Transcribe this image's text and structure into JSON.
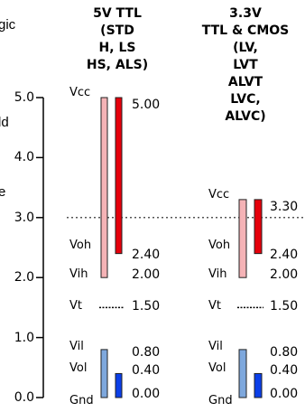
{
  "side_text": {
    "top": "gic",
    "middle": "ld",
    "lower": "e"
  },
  "columns": [
    {
      "id": "ttl5",
      "heading": [
        "5V TTL",
        "(STD",
        "H, LS",
        "HS, ALS)"
      ],
      "vcc": {
        "label": "Vcc",
        "value": "5.00",
        "level": 5.0
      },
      "voh": {
        "label": "Voh",
        "value": "2.40",
        "level": 2.4
      },
      "vih": {
        "label": "Vih",
        "value": "2.00",
        "level": 2.0
      },
      "vt": {
        "label": "Vt",
        "value": "1.50",
        "level": 1.5
      },
      "vil": {
        "label": "Vil",
        "value": "0.80",
        "level": 0.8
      },
      "vol": {
        "label": "Vol",
        "value": "0.40",
        "level": 0.4
      },
      "gnd": {
        "label": "Gnd",
        "value": "0.00",
        "level": 0.0
      }
    },
    {
      "id": "lv33",
      "heading": [
        "3.3V",
        "TTL & CMOS",
        "(LV,",
        "LVT",
        "ALVT",
        "LVC,",
        "ALVC)"
      ],
      "vcc": {
        "label": "Vcc",
        "value": "3.30",
        "level": 3.3
      },
      "voh": {
        "label": "Voh",
        "value": "2.40",
        "level": 2.4
      },
      "vih": {
        "label": "Vih",
        "value": "2.00",
        "level": 2.0
      },
      "vt": {
        "label": "Vt",
        "value": "1.50",
        "level": 1.5
      },
      "vil": {
        "label": "Vil",
        "value": "0.80",
        "level": 0.8
      },
      "vol": {
        "label": "Vol",
        "value": "0.40",
        "level": 0.4
      },
      "gnd": {
        "label": "Gnd",
        "value": "0.00",
        "level": 0.0
      }
    }
  ],
  "y_axis": {
    "ticks": [
      "5.0",
      "4.0",
      "3.0",
      "2.0",
      "1.0",
      "0.0"
    ],
    "min": 0,
    "max": 5
  },
  "reference_line_level": 3.0,
  "colors": {
    "input_high": "#f5b3b6",
    "output_high": "#e5000b",
    "input_low": "#7ea8dd",
    "output_low": "#0b3fe8",
    "axis": "#000000",
    "reference_line": "#555555"
  }
}
